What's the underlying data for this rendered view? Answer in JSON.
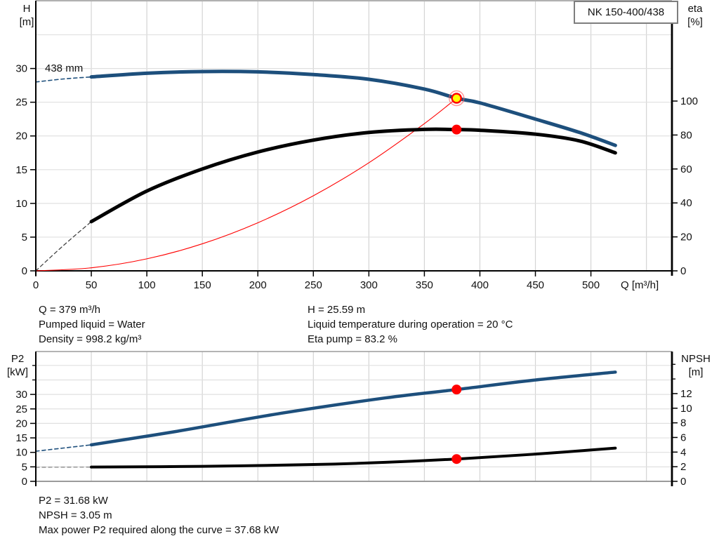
{
  "title_box": "NK 150-400/438",
  "info": {
    "left": [
      "Q = 379 m³/h",
      "Pumped liquid = Water",
      "Density = 998.2 kg/m³"
    ],
    "right": [
      "H = 25.59 m",
      "Liquid temperature during operation = 20 °C",
      "Eta pump = 83.2 %"
    ],
    "bottom": [
      "P2 = 31.68 kW",
      "NPSH = 3.05 m",
      "Max power P2 required along the curve = 37.68 kW"
    ]
  },
  "colors": {
    "curve_blue": "#1d4f7c",
    "curve_black": "#000000",
    "system_red": "#ff0000",
    "duty_yellow": "#ffff00",
    "grid_v": "#d4d4d4",
    "grid_h": "#e0e0e0",
    "border_gray": "#9b9b9b"
  },
  "chart_data": [
    {
      "type": "line",
      "title": "NK 150-400/438",
      "annotation": "438 mm",
      "x": {
        "label": "Q [m³/h]",
        "min": 0,
        "max": 573,
        "show_labels": true,
        "major_ticks": [
          0,
          50,
          100,
          150,
          200,
          250,
          300,
          350,
          400,
          450,
          500
        ],
        "grid": [
          50,
          100,
          150,
          200,
          250,
          300,
          350,
          400,
          450,
          500,
          550
        ]
      },
      "y": {
        "label": "H",
        "unit": "[m]",
        "min": 0,
        "max": 40.05,
        "major_ticks": [
          0,
          5,
          10,
          15,
          20,
          25,
          30
        ],
        "grid": [
          5,
          10,
          15,
          20,
          25,
          30,
          35,
          40
        ]
      },
      "y2": {
        "label": "eta",
        "unit": "[%]",
        "min": 0,
        "max": 159.1,
        "major_ticks": [
          0,
          20,
          40,
          60,
          80,
          100
        ],
        "minor_ticks": []
      },
      "series": [
        {
          "name": "head-curve-extrapolation",
          "axis": "y",
          "style": "dashed",
          "color": "#1d4f7c",
          "width": 1.6,
          "points": [
            [
              0,
              28.0
            ],
            [
              25,
              28.45
            ],
            [
              50,
              28.75
            ]
          ]
        },
        {
          "name": "eta-curve-extrapolation",
          "axis": "y2",
          "style": "dashed",
          "color": "#444444",
          "width": 1.3,
          "points": [
            [
              0,
              0
            ],
            [
              25,
              15
            ],
            [
              50,
              29
            ]
          ]
        },
        {
          "name": "system-curve",
          "axis": "y",
          "style": "solid",
          "color": "#ff0000",
          "width": 1.1,
          "points": [
            [
              0,
              0
            ],
            [
              50,
              0.45
            ],
            [
              100,
              1.78
            ],
            [
              150,
              4.01
            ],
            [
              200,
              7.13
            ],
            [
              250,
              11.13
            ],
            [
              300,
              16.03
            ],
            [
              350,
              21.83
            ],
            [
              379,
              25.59
            ]
          ]
        },
        {
          "name": "eta-curve",
          "axis": "y2",
          "style": "solid",
          "color": "#000000",
          "width": 5,
          "points": [
            [
              50,
              29
            ],
            [
              100,
              47
            ],
            [
              150,
              60
            ],
            [
              200,
              70
            ],
            [
              250,
              77
            ],
            [
              300,
              81.5
            ],
            [
              350,
              83.3
            ],
            [
              379,
              83.2
            ],
            [
              400,
              82.8
            ],
            [
              450,
              80.5
            ],
            [
              490,
              76.5
            ],
            [
              522,
              69.5
            ]
          ]
        },
        {
          "name": "head-curve-438mm",
          "axis": "y",
          "style": "solid",
          "color": "#1d4f7c",
          "width": 5,
          "points": [
            [
              50,
              28.75
            ],
            [
              100,
              29.3
            ],
            [
              150,
              29.55
            ],
            [
              200,
              29.5
            ],
            [
              250,
              29.1
            ],
            [
              300,
              28.4
            ],
            [
              350,
              26.95
            ],
            [
              379,
              25.59
            ],
            [
              400,
              24.9
            ],
            [
              450,
              22.5
            ],
            [
              490,
              20.5
            ],
            [
              522,
              18.6
            ]
          ]
        }
      ],
      "markers": [
        {
          "name": "duty-point",
          "axis": "y",
          "q": 379,
          "v": 25.59,
          "r": 6.5,
          "fill": "#ffff00",
          "stroke": "#ff0000",
          "halo": true
        },
        {
          "name": "eta-point",
          "axis": "y2",
          "q": 379,
          "v": 83.2,
          "r": 7,
          "fill": "#ff0000",
          "stroke": "none",
          "halo": false
        }
      ]
    },
    {
      "type": "line",
      "x": {
        "label": "",
        "min": 0,
        "max": 573,
        "show_labels": false,
        "major_ticks": [],
        "grid": [
          50,
          100,
          150,
          200,
          250,
          300,
          350,
          400,
          450,
          500,
          550
        ]
      },
      "y": {
        "label": "P2",
        "unit": "[kW]",
        "min": 0,
        "max": 44.8,
        "major_ticks": [
          0,
          5,
          10,
          15,
          20,
          25,
          30
        ],
        "minor_ticks": [
          35,
          40
        ],
        "grid": [
          5,
          10,
          15,
          20,
          25,
          30,
          35,
          40
        ]
      },
      "y2": {
        "label": "NPSH",
        "unit": "[m]",
        "min": 0,
        "max": 17.75,
        "major_ticks": [
          0,
          2,
          4,
          6,
          8,
          10,
          12
        ],
        "minor_ticks": [
          14,
          16
        ]
      },
      "series": [
        {
          "name": "p2-curve-extrapolation",
          "axis": "y",
          "style": "dashed",
          "color": "#1d4f7c",
          "width": 1.6,
          "points": [
            [
              0,
              10.4
            ],
            [
              25,
              11.5
            ],
            [
              50,
              12.6
            ]
          ]
        },
        {
          "name": "npsh-curve-extrapolation",
          "axis": "y2",
          "style": "dashed",
          "color": "#888888",
          "width": 1.3,
          "points": [
            [
              0,
              1.92
            ],
            [
              50,
              1.95
            ]
          ]
        },
        {
          "name": "p2-curve",
          "axis": "y",
          "style": "solid",
          "color": "#1d4f7c",
          "width": 4.5,
          "points": [
            [
              50,
              12.6
            ],
            [
              126,
              17.2
            ],
            [
              221,
              23.5
            ],
            [
              315,
              28.8
            ],
            [
              379,
              31.68
            ],
            [
              448,
              34.9
            ],
            [
              522,
              37.7
            ]
          ]
        },
        {
          "name": "npsh-curve",
          "axis": "y2",
          "style": "solid",
          "color": "#000000",
          "width": 4,
          "points": [
            [
              50,
              1.95
            ],
            [
              150,
              2.05
            ],
            [
              250,
              2.3
            ],
            [
              315,
              2.6
            ],
            [
              379,
              3.05
            ],
            [
              448,
              3.7
            ],
            [
              522,
              4.55
            ]
          ]
        }
      ],
      "markers": [
        {
          "name": "p2-point",
          "axis": "y",
          "q": 379,
          "v": 31.68,
          "r": 7,
          "fill": "#ff0000",
          "stroke": "none",
          "halo": false
        },
        {
          "name": "npsh-point",
          "axis": "y2",
          "q": 379,
          "v": 3.05,
          "r": 7,
          "fill": "#ff0000",
          "stroke": "none",
          "halo": false
        }
      ]
    }
  ]
}
